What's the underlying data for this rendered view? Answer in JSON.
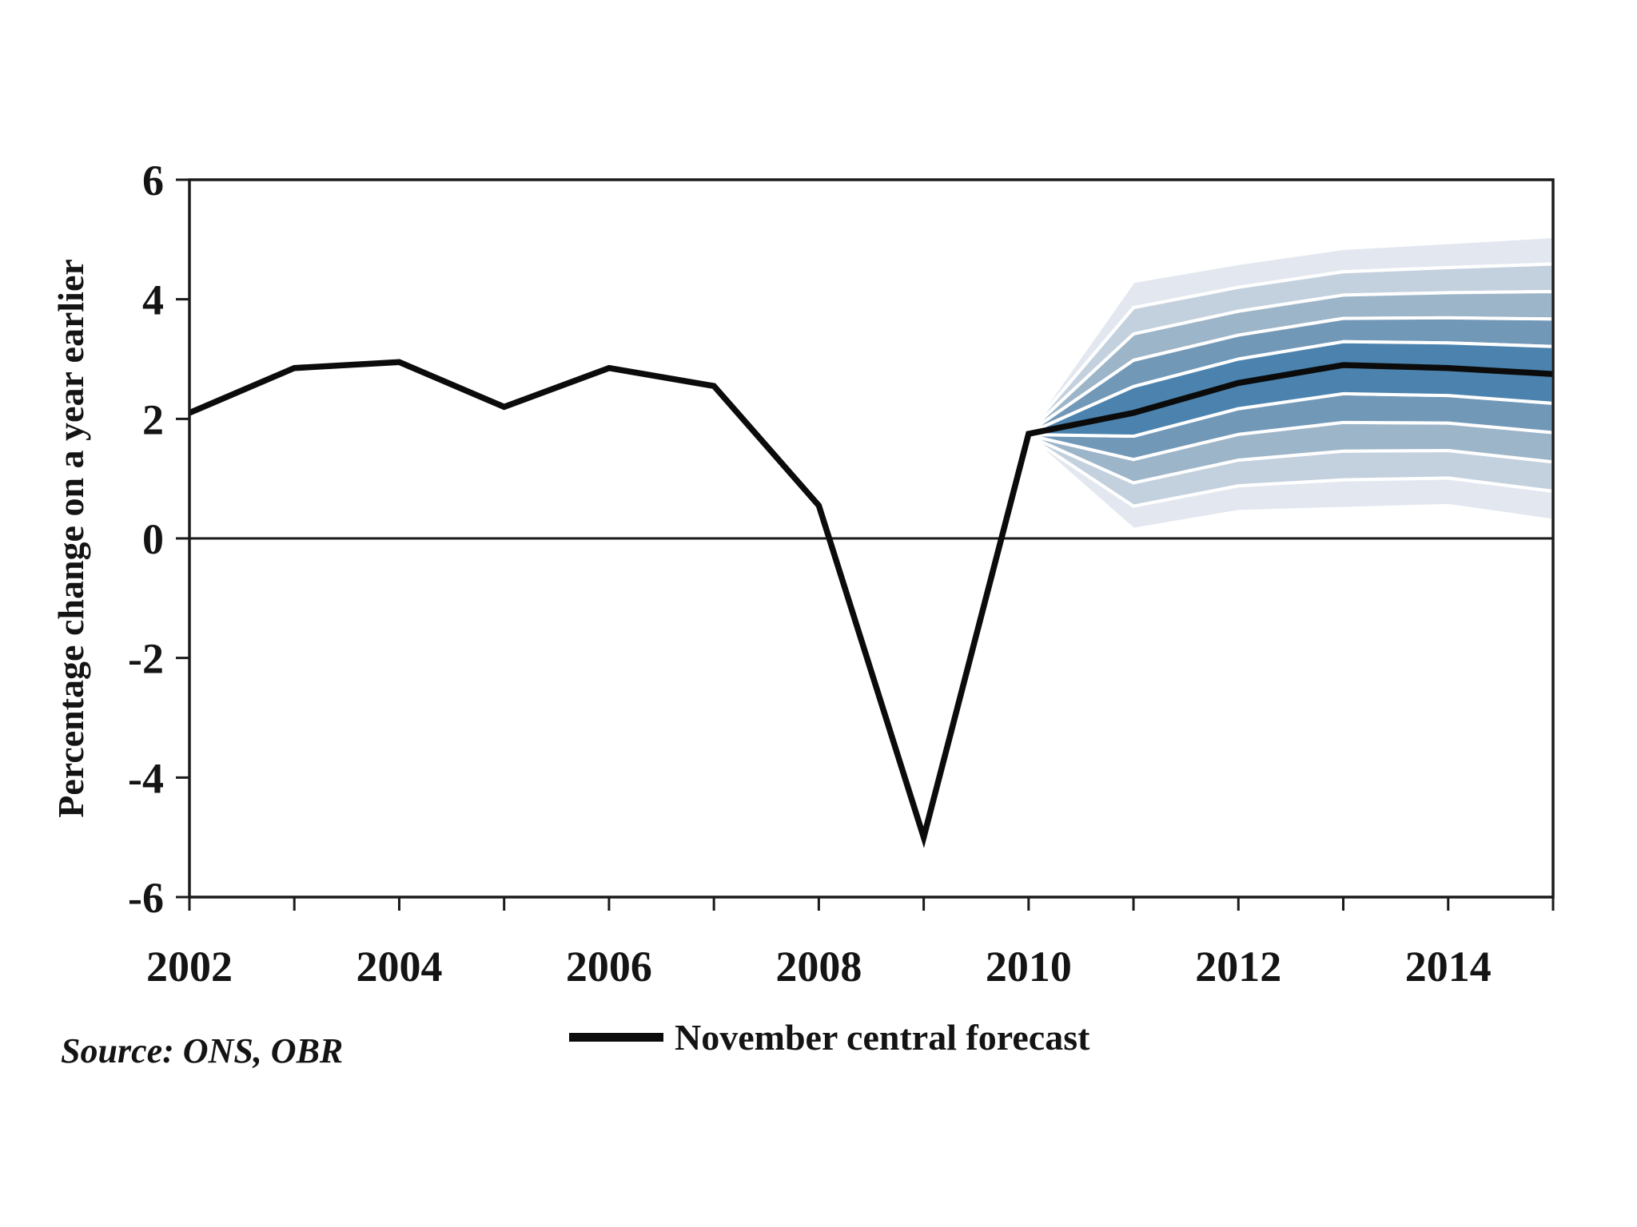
{
  "figure": {
    "legend": {
      "label": "November central forecast",
      "line_color": "#0b0b0b"
    },
    "source_note": "Source: ONS, OBR"
  },
  "chart_data": {
    "type": "line",
    "subtype": "fan-chart-forecast",
    "title": "",
    "xlabel": "",
    "ylabel": "Percentage change on a year earlier",
    "xlim": [
      2002,
      2015
    ],
    "ylim": [
      -6,
      6
    ],
    "x_tick_years": [
      2002,
      2003,
      2004,
      2005,
      2006,
      2007,
      2008,
      2009,
      2010,
      2011,
      2012,
      2013,
      2014,
      2015
    ],
    "x_tick_labels": [
      "2002",
      "2004",
      "2006",
      "2008",
      "2010",
      "2012",
      "2014"
    ],
    "y_tick_labels": [
      "6",
      "4",
      "2",
      "0",
      "-2",
      "-4",
      "-6"
    ],
    "grid": false,
    "zero_line": true,
    "axis_color": "#1a1a1a",
    "legend_position": "bottom-center",
    "series": [
      {
        "name": "November central forecast",
        "type": "line",
        "color": "#0b0b0b",
        "x": [
          2002,
          2003,
          2004,
          2005,
          2006,
          2007,
          2008,
          2009,
          2010,
          2011,
          2012,
          2013,
          2014,
          2015
        ],
        "values": [
          2.1,
          2.85,
          2.95,
          2.2,
          2.85,
          2.55,
          0.55,
          -5.0,
          1.75,
          2.1,
          2.6,
          2.9,
          2.85,
          2.75
        ]
      }
    ],
    "fan_bands": {
      "note": "forecast probability fan around central forecast, 5 shaded bands each side separated by white lines",
      "x": [
        2010,
        2011,
        2012,
        2013,
        2014,
        2015
      ],
      "center": [
        1.75,
        2.1,
        2.6,
        2.9,
        2.85,
        2.75
      ],
      "upper_offsets": [
        0.06,
        2.2,
        2.0,
        1.95,
        2.1,
        2.3
      ],
      "lower_offsets": [
        0.06,
        1.95,
        2.15,
        2.4,
        2.3,
        2.45
      ],
      "bands_per_side": 5,
      "colors_inner_to_outer": [
        "#4b83ae",
        "#7298b8",
        "#9db5c9",
        "#c3d0de",
        "#e3e8f0"
      ],
      "separator_color": "#ffffff"
    }
  }
}
